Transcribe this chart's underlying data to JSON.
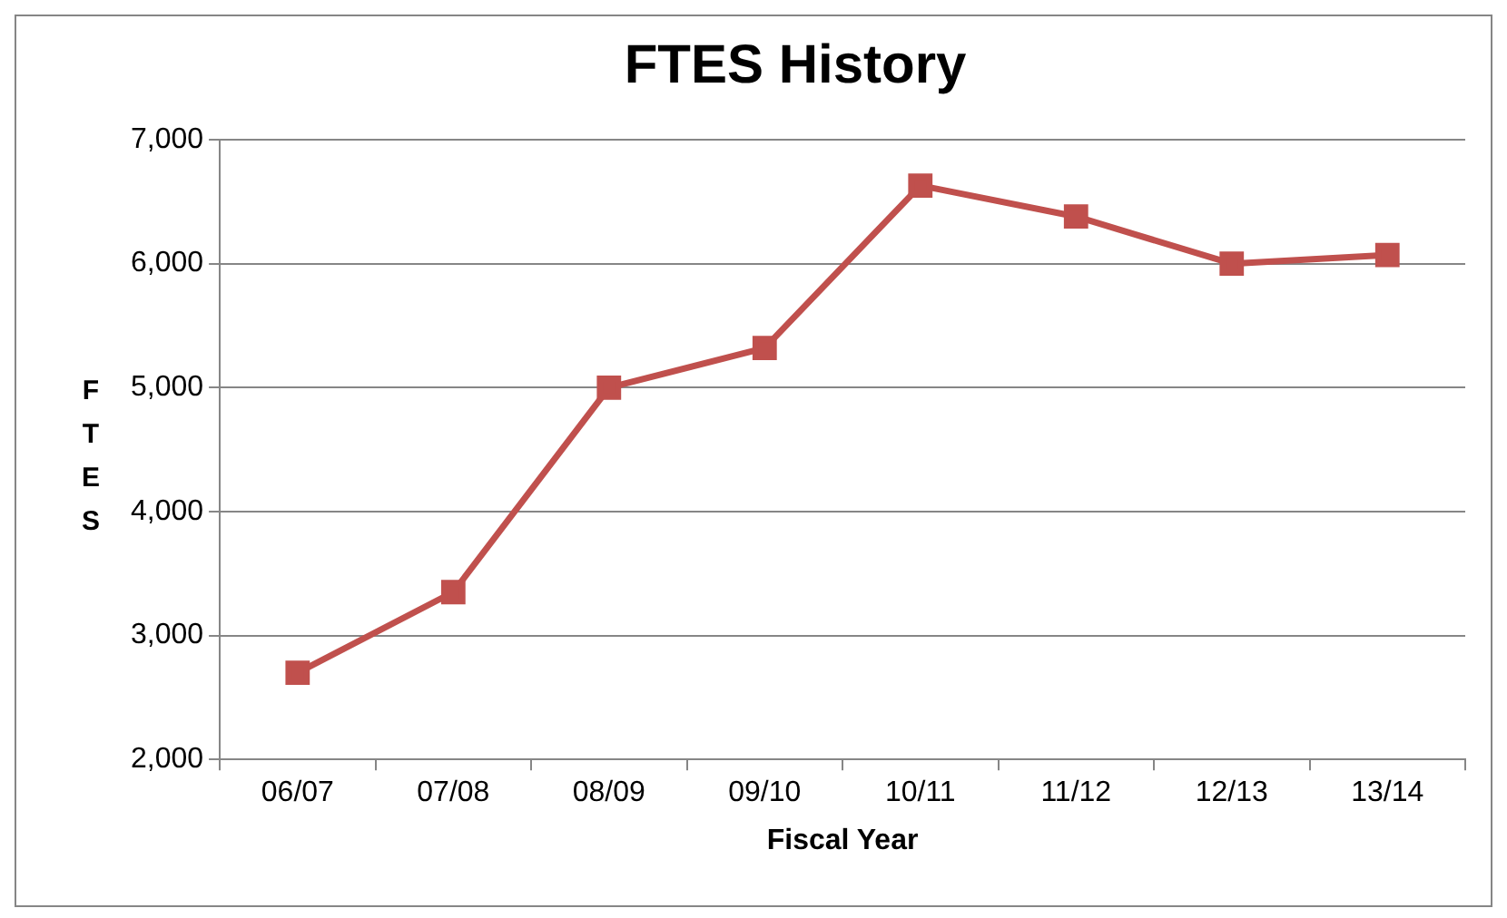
{
  "chart_data": {
    "type": "line",
    "title": "FTES History",
    "xlabel": "Fiscal Year",
    "ylabel": "FTES",
    "categories": [
      "06/07",
      "07/08",
      "08/09",
      "09/10",
      "10/11",
      "11/12",
      "12/13",
      "13/14"
    ],
    "series": [
      {
        "color": "#c0504d",
        "values": [
          2700,
          3350,
          5000,
          5320,
          6630,
          6380,
          6000,
          6070
        ]
      }
    ],
    "ylim": [
      2000,
      7000
    ],
    "yticks": [
      {
        "value": 2000,
        "label": "2,000"
      },
      {
        "value": 3000,
        "label": "3,000"
      },
      {
        "value": 4000,
        "label": "4,000"
      },
      {
        "value": 5000,
        "label": "5,000"
      },
      {
        "value": 6000,
        "label": "6,000"
      },
      {
        "value": 7000,
        "label": "7,000"
      }
    ],
    "grid": "y",
    "legend": false,
    "marker": "square",
    "line_style": "solid"
  }
}
